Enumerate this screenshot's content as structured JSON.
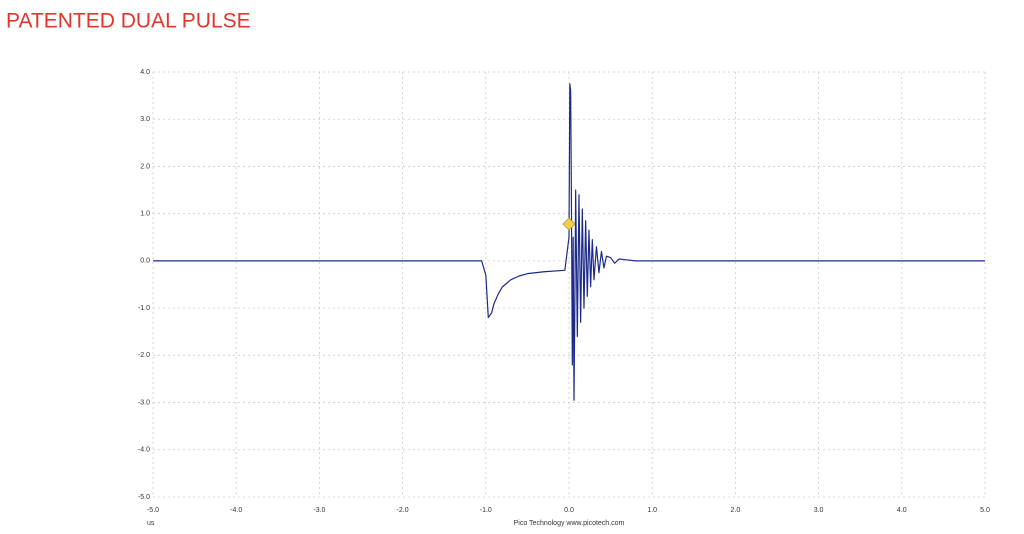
{
  "chart_data": {
    "type": "line",
    "title": "PATENTED DUAL PULSE",
    "x_unit": "us",
    "footer": "Pico Technology   www.picotech.com",
    "color": "#1c2a8c",
    "grid": true,
    "xlim": [
      -5,
      5
    ],
    "ylim": [
      -5,
      4
    ],
    "xticks": [
      {
        "value": -5,
        "label": "-5.0"
      },
      {
        "value": -4,
        "label": "-4.0"
      },
      {
        "value": -3,
        "label": "-3.0"
      },
      {
        "value": -2,
        "label": "-2.0"
      },
      {
        "value": -1,
        "label": "-1.0"
      },
      {
        "value": 0,
        "label": "0.0"
      },
      {
        "value": 1,
        "label": "1.0"
      },
      {
        "value": 2,
        "label": "2.0"
      },
      {
        "value": 3,
        "label": "3.0"
      },
      {
        "value": 4,
        "label": "4.0"
      },
      {
        "value": 5,
        "label": "5.0"
      }
    ],
    "yticks": [
      {
        "value": 4,
        "label": "4.0"
      },
      {
        "value": 3,
        "label": "3.0"
      },
      {
        "value": 2,
        "label": "2.0"
      },
      {
        "value": 1,
        "label": "1.0"
      },
      {
        "value": 0,
        "label": "0.0"
      },
      {
        "value": -1,
        "label": "-1.0"
      },
      {
        "value": -2,
        "label": "-2.0"
      },
      {
        "value": -3,
        "label": "-3.0"
      },
      {
        "value": -4,
        "label": "-4.0"
      },
      {
        "value": -5,
        "label": "-5.0"
      }
    ],
    "x": [
      -5,
      -4,
      -3,
      -2,
      -1.5,
      -1.05,
      -1.0,
      -0.97,
      -0.93,
      -0.9,
      -0.85,
      -0.8,
      -0.7,
      -0.6,
      -0.5,
      -0.3,
      -0.05,
      0,
      0.01,
      0.02,
      0.03,
      0.04,
      0.05,
      0.06,
      0.07,
      0.08,
      0.1,
      0.12,
      0.14,
      0.16,
      0.18,
      0.2,
      0.22,
      0.24,
      0.26,
      0.28,
      0.3,
      0.33,
      0.36,
      0.39,
      0.42,
      0.45,
      0.5,
      0.55,
      0.6,
      0.7,
      0.8,
      1.0,
      2,
      3,
      4,
      5
    ],
    "values": [
      0,
      0,
      0,
      0,
      0,
      0,
      -0.3,
      -1.2,
      -1.1,
      -0.9,
      -0.7,
      -0.55,
      -0.4,
      -0.32,
      -0.27,
      -0.23,
      -0.2,
      0.5,
      3.75,
      3.6,
      1.0,
      -2.2,
      0.5,
      -2.95,
      -1.0,
      1.5,
      -1.6,
      1.4,
      -1.3,
      1.1,
      -1.0,
      0.85,
      -0.75,
      0.65,
      -0.55,
      0.45,
      -0.4,
      0.3,
      -0.25,
      0.2,
      -0.15,
      0.1,
      0.07,
      -0.05,
      0.04,
      0.02,
      0,
      0,
      0,
      0,
      0,
      0
    ]
  }
}
